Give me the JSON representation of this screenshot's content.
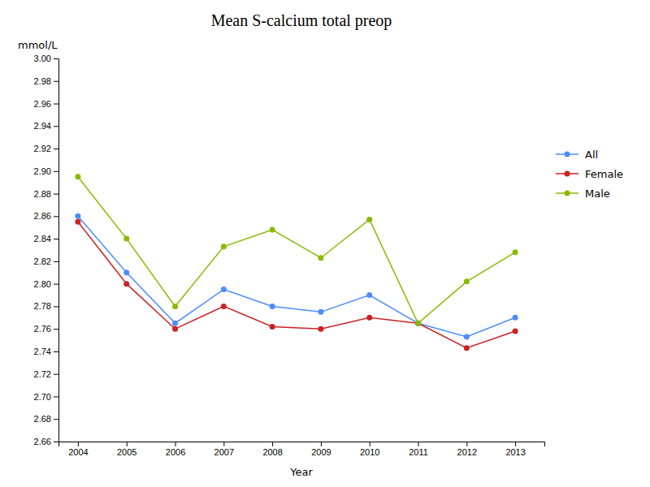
{
  "chart_data": {
    "type": "line",
    "title": "Mean S-calcium total preop",
    "xlabel": "Year",
    "ylabel": "mmol/L",
    "x": [
      2004,
      2005,
      2006,
      2007,
      2008,
      2009,
      2010,
      2011,
      2012,
      2013
    ],
    "series": [
      {
        "name": "All",
        "color": "#4c8cff",
        "values": [
          2.86,
          2.81,
          2.765,
          2.795,
          2.78,
          2.775,
          2.79,
          2.765,
          2.753,
          2.77
        ]
      },
      {
        "name": "Female",
        "color": "#cc2222",
        "values": [
          2.855,
          2.8,
          2.76,
          2.78,
          2.762,
          2.76,
          2.77,
          2.765,
          2.743,
          2.758
        ]
      },
      {
        "name": "Male",
        "color": "#88bb00",
        "values": [
          2.895,
          2.84,
          2.78,
          2.833,
          2.848,
          2.823,
          2.857,
          2.765,
          2.802,
          2.828
        ]
      }
    ],
    "xlim": [
      2003.6,
      2013.6
    ],
    "xticks": [
      2004,
      2005,
      2006,
      2007,
      2008,
      2009,
      2010,
      2011,
      2012,
      2013
    ],
    "ylim": [
      2.66,
      3.0
    ],
    "yticks": [
      2.66,
      2.68,
      {
        "value": 2.7,
        "label": "2.70"
      },
      2.72,
      2.74,
      2.76,
      2.78,
      {
        "value": 2.8,
        "label": "2.80"
      },
      2.82,
      2.84,
      2.86,
      2.88,
      {
        "value": 2.9,
        "label": "2.90"
      },
      2.92,
      2.94,
      2.96,
      2.98,
      {
        "value": 3.0,
        "label": "3.00"
      }
    ],
    "grid": false,
    "legend": "right",
    "marker": "circle"
  }
}
